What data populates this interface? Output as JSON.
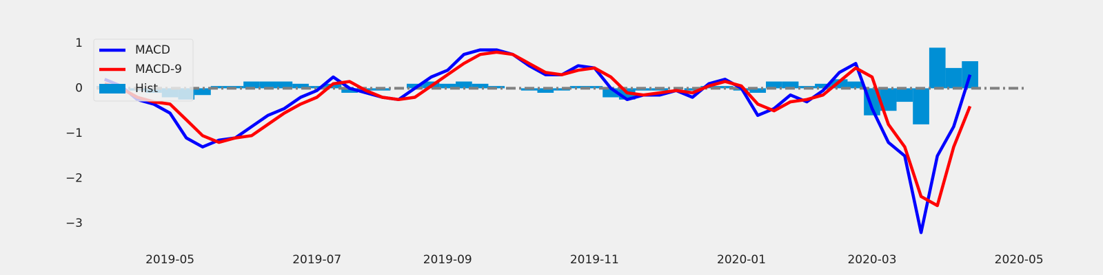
{
  "chart_data": {
    "type": "macd",
    "categories": [
      null,
      null,
      null,
      null,
      "2019-05",
      null,
      null,
      null,
      null,
      null,
      null,
      null,
      null,
      "2019-07",
      null,
      null,
      null,
      null,
      null,
      null,
      null,
      "2019-09",
      null,
      null,
      null,
      null,
      null,
      null,
      null,
      null,
      "2019-11",
      null,
      null,
      null,
      null,
      null,
      null,
      null,
      null,
      "2020-01",
      null,
      null,
      null,
      null,
      null,
      null,
      null,
      "2020-03",
      null,
      null,
      null,
      null,
      null,
      null,
      null,
      null,
      "2020-05"
    ],
    "series": [
      {
        "name": "MACD",
        "kind": "line",
        "color": "#0000ff",
        "values": [
          0.2,
          0.05,
          -0.25,
          -0.35,
          -0.55,
          -1.1,
          -1.3,
          -1.15,
          -1.1,
          -0.85,
          -0.6,
          -0.45,
          -0.2,
          -0.05,
          0.25,
          0.0,
          -0.1,
          -0.2,
          -0.25,
          0.0,
          0.25,
          0.4,
          0.75,
          0.85,
          0.85,
          0.75,
          0.5,
          0.3,
          0.3,
          0.5,
          0.45,
          0.0,
          -0.25,
          -0.15,
          -0.15,
          -0.05,
          -0.2,
          0.1,
          0.2,
          0.0,
          -0.6,
          -0.45,
          -0.15,
          -0.3,
          -0.05,
          0.35,
          0.55,
          -0.45,
          -1.2,
          -1.5,
          -3.2,
          -1.5,
          -0.85,
          0.3,
          null,
          null,
          null
        ]
      },
      {
        "name": "MACD-9",
        "kind": "line",
        "color": "#ff0000",
        "values": [
          0.1,
          0.0,
          -0.2,
          -0.3,
          -0.35,
          -0.7,
          -1.05,
          -1.2,
          -1.1,
          -1.05,
          -0.8,
          -0.55,
          -0.35,
          -0.2,
          0.1,
          0.15,
          -0.05,
          -0.2,
          -0.25,
          -0.2,
          0.05,
          0.3,
          0.55,
          0.75,
          0.8,
          0.75,
          0.55,
          0.35,
          0.3,
          0.4,
          0.45,
          0.25,
          -0.1,
          -0.15,
          -0.1,
          -0.05,
          -0.1,
          0.05,
          0.15,
          0.05,
          -0.35,
          -0.5,
          -0.3,
          -0.25,
          -0.15,
          0.15,
          0.45,
          0.25,
          -0.8,
          -1.3,
          -2.4,
          -2.6,
          -1.3,
          -0.4,
          null,
          null,
          null
        ]
      },
      {
        "name": "Hist",
        "kind": "bar",
        "color": "#008fd5",
        "values": [
          0.05,
          0.0,
          -0.05,
          -0.1,
          -0.2,
          -0.25,
          -0.15,
          0.05,
          0.05,
          0.15,
          0.15,
          0.15,
          0.1,
          0.05,
          0.1,
          -0.1,
          -0.05,
          -0.05,
          0.0,
          0.1,
          0.15,
          0.1,
          0.15,
          0.1,
          0.05,
          0.0,
          -0.05,
          -0.1,
          -0.05,
          0.05,
          0.05,
          -0.2,
          -0.25,
          -0.05,
          -0.05,
          0.0,
          -0.05,
          0.05,
          0.05,
          -0.05,
          -0.1,
          0.15,
          0.15,
          0.05,
          0.1,
          0.2,
          0.15,
          -0.6,
          -0.5,
          -0.3,
          -0.8,
          0.9,
          0.45,
          0.6,
          null,
          null,
          null
        ]
      }
    ],
    "ylim": [
      -3.5,
      1.5
    ],
    "yticks": [
      {
        "value": -3,
        "label": "−3"
      },
      {
        "value": -2,
        "label": "−2"
      },
      {
        "value": -1,
        "label": "−1"
      },
      0,
      1
    ],
    "grid": false,
    "zero_line": true,
    "legend": "upper-left"
  }
}
